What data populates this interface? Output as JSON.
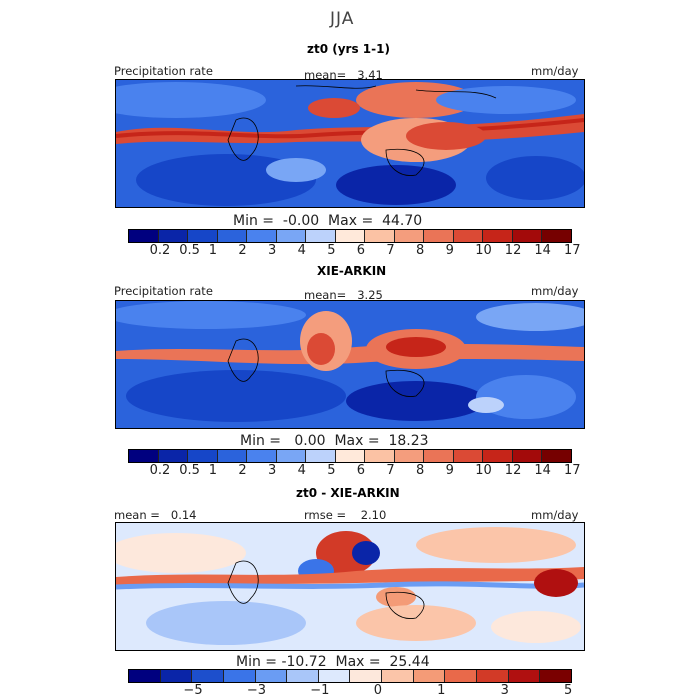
{
  "season": "JJA",
  "chart_data": [
    {
      "type": "heatmap",
      "title": "zt0 (yrs 1-1)",
      "label_left": "Precipitation rate",
      "stat_center": "mean=   3.41",
      "units": "mm/day",
      "minmax": "Min =  -0.00  Max =  44.70",
      "stats": {
        "mean": 3.41,
        "min": -0.0,
        "max": 44.7
      },
      "colorbar": {
        "colors": [
          "#00007f",
          "#0a25a8",
          "#1646c8",
          "#2b63dc",
          "#4a82ee",
          "#79a6f5",
          "#bcd2fb",
          "#ffe9da",
          "#fbc2a4",
          "#f49d7d",
          "#ea7457",
          "#db4a35",
          "#c62519",
          "#a30a0a",
          "#760000"
        ],
        "ticks": [
          "0.2",
          "0.5",
          "1",
          "2",
          "3",
          "4",
          "5",
          "6",
          "7",
          "8",
          "9",
          "10",
          "12",
          "14",
          "17"
        ]
      }
    },
    {
      "type": "heatmap",
      "title": "XIE-ARKIN",
      "label_left": "Precipitation rate",
      "stat_center": "mean=   3.25",
      "units": "mm/day",
      "minmax": "Min =   0.00  Max =  18.23",
      "stats": {
        "mean": 3.25,
        "min": 0.0,
        "max": 18.23
      },
      "colorbar": {
        "colors": [
          "#00007f",
          "#0a25a8",
          "#1646c8",
          "#2b63dc",
          "#4a82ee",
          "#79a6f5",
          "#bcd2fb",
          "#ffe9da",
          "#fbc2a4",
          "#f49d7d",
          "#ea7457",
          "#db4a35",
          "#c62519",
          "#a30a0a",
          "#760000"
        ],
        "ticks": [
          "0.2",
          "0.5",
          "1",
          "2",
          "3",
          "4",
          "5",
          "6",
          "7",
          "8",
          "9",
          "10",
          "12",
          "14",
          "17"
        ]
      }
    },
    {
      "type": "heatmap",
      "title": "zt0 - XIE-ARKIN",
      "label_left": "mean =   0.14",
      "stat_center": "rmse =    2.10",
      "units": "mm/day",
      "minmax": "Min = -10.72  Max =  25.44",
      "stats": {
        "mean": 0.14,
        "rmse": 2.1,
        "min": -10.72,
        "max": 25.44
      },
      "colorbar": {
        "colors": [
          "#00007f",
          "#0a25a8",
          "#1d4fcc",
          "#3a74e8",
          "#6a9cf3",
          "#a9c6f9",
          "#dde9fd",
          "#fde8dc",
          "#fbc5a9",
          "#f49b77",
          "#e9694a",
          "#d23a27",
          "#b01010",
          "#7a0000"
        ],
        "ticks": [
          "−5",
          "−3",
          "−1",
          "0",
          "1",
          "3",
          "5"
        ]
      }
    }
  ]
}
